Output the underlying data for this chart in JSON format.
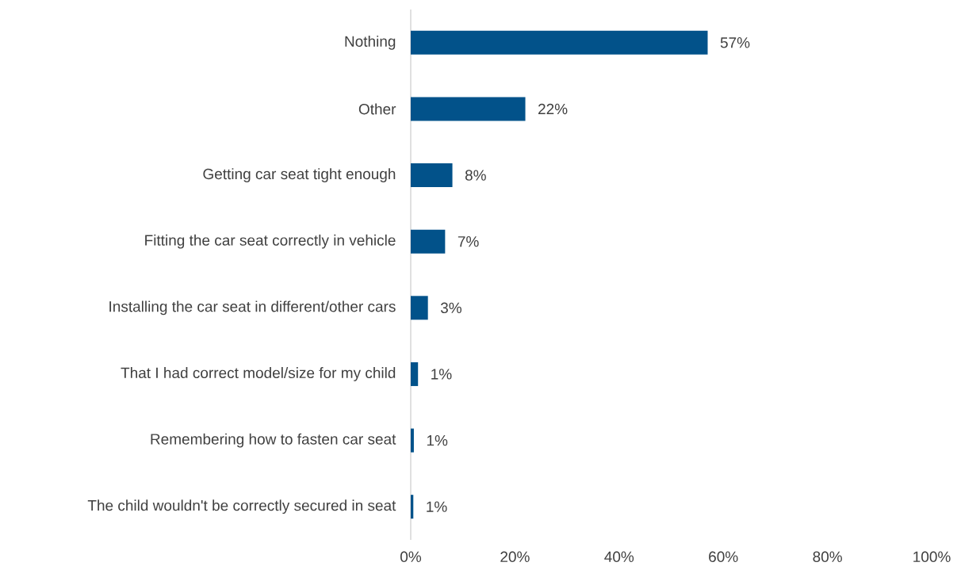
{
  "chart_data": {
    "type": "bar",
    "orientation": "horizontal",
    "categories": [
      "Nothing",
      "Other",
      "Getting car seat tight enough",
      "Fitting the car seat correctly in vehicle",
      "Installing the car seat in different/other cars",
      "That I had correct model/size for my child",
      "Remembering how to fasten car seat",
      "The child wouldn't be correctly secured in seat"
    ],
    "values": [
      57,
      22,
      8,
      6.6,
      3.3,
      1.4,
      0.6,
      0.5
    ],
    "value_labels": [
      "57%",
      "22%",
      "8%",
      "7%",
      "3%",
      "1%",
      "1%",
      "1%"
    ],
    "color": "#02528a",
    "xlim": [
      0,
      100
    ],
    "xticks": [
      {
        "value": 0,
        "label": "0%"
      },
      {
        "value": 20,
        "label": "20%"
      },
      {
        "value": 40,
        "label": "40%"
      },
      {
        "value": 60,
        "label": "60%"
      },
      {
        "value": 80,
        "label": "80%"
      },
      {
        "value": 100,
        "label": "100%"
      }
    ]
  }
}
